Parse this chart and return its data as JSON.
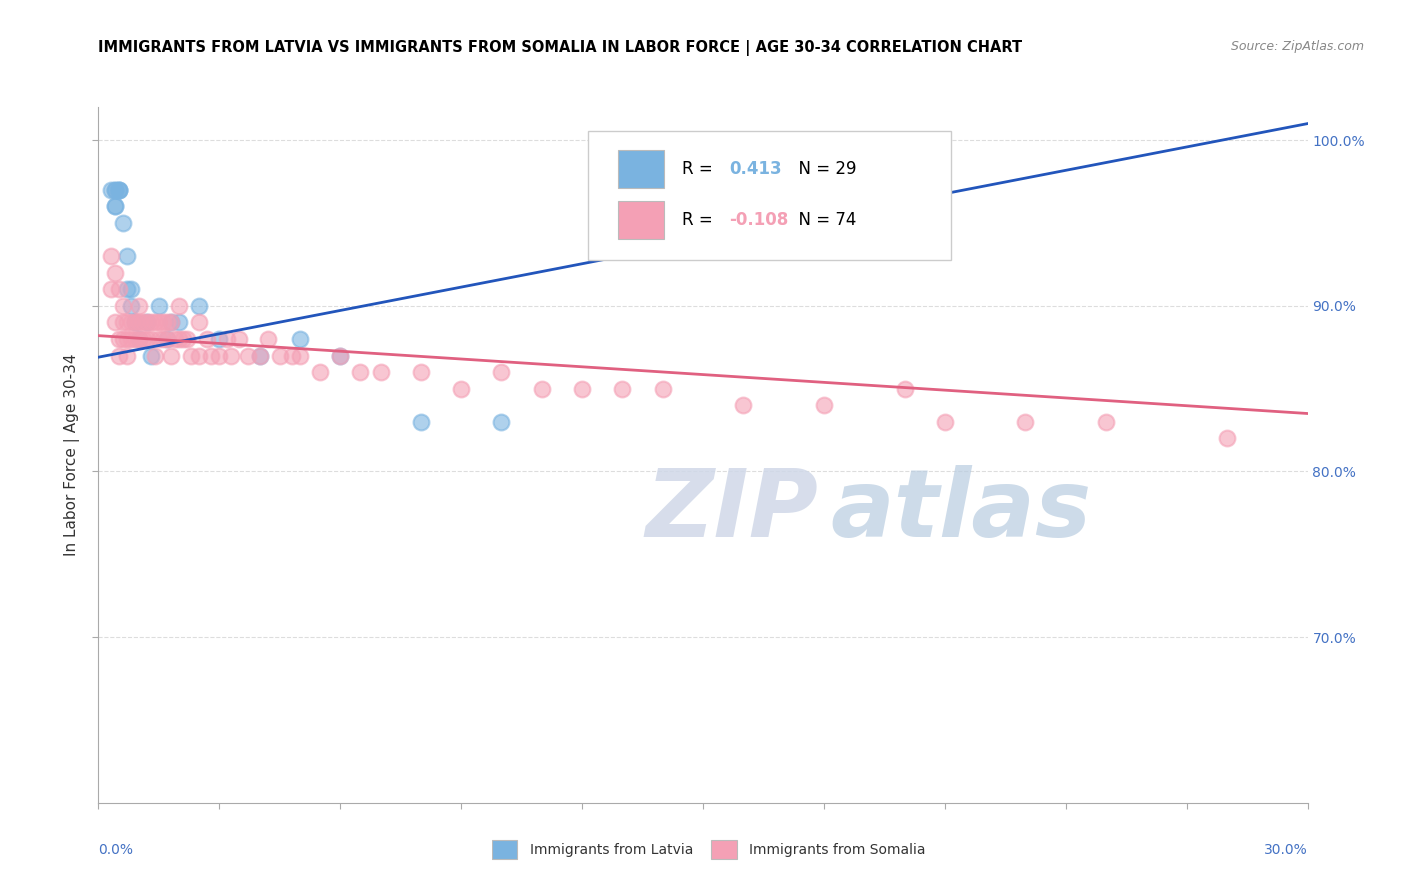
{
  "title": "IMMIGRANTS FROM LATVIA VS IMMIGRANTS FROM SOMALIA IN LABOR FORCE | AGE 30-34 CORRELATION CHART",
  "source": "Source: ZipAtlas.com",
  "ylabel": "In Labor Force | Age 30-34",
  "legend_latvia": "Immigrants from Latvia",
  "legend_somalia": "Immigrants from Somalia",
  "R_latvia": 0.413,
  "N_latvia": 29,
  "R_somalia": -0.108,
  "N_somalia": 74,
  "xmin": 0.0,
  "xmax": 0.3,
  "ymin": 0.6,
  "ymax": 1.02,
  "yticks": [
    0.7,
    0.8,
    0.9,
    1.0
  ],
  "color_latvia": "#7ab3e0",
  "color_somalia": "#f4a0b5",
  "trendline_latvia": "#2255bb",
  "trendline_somalia": "#e06080",
  "watermark_zip": "ZIP",
  "watermark_atlas": "atlas",
  "grid_color": "#dddddd",
  "background_color": "#ffffff",
  "latvia_x": [
    0.003,
    0.004,
    0.004,
    0.004,
    0.004,
    0.005,
    0.005,
    0.005,
    0.006,
    0.007,
    0.007,
    0.008,
    0.008,
    0.009,
    0.01,
    0.012,
    0.013,
    0.015,
    0.017,
    0.018,
    0.02,
    0.025,
    0.03,
    0.04,
    0.05,
    0.06,
    0.08,
    0.1,
    0.2
  ],
  "latvia_y": [
    0.97,
    0.97,
    0.97,
    0.96,
    0.96,
    0.97,
    0.97,
    0.97,
    0.95,
    0.93,
    0.91,
    0.91,
    0.9,
    0.89,
    0.88,
    0.89,
    0.87,
    0.9,
    0.88,
    0.89,
    0.89,
    0.9,
    0.88,
    0.87,
    0.88,
    0.87,
    0.83,
    0.83,
    0.97
  ],
  "somalia_x": [
    0.003,
    0.003,
    0.004,
    0.004,
    0.005,
    0.005,
    0.005,
    0.006,
    0.006,
    0.006,
    0.007,
    0.007,
    0.007,
    0.008,
    0.008,
    0.009,
    0.009,
    0.01,
    0.01,
    0.01,
    0.011,
    0.011,
    0.012,
    0.012,
    0.013,
    0.013,
    0.014,
    0.014,
    0.015,
    0.015,
    0.016,
    0.016,
    0.017,
    0.017,
    0.018,
    0.018,
    0.019,
    0.02,
    0.02,
    0.021,
    0.022,
    0.023,
    0.025,
    0.025,
    0.027,
    0.028,
    0.03,
    0.032,
    0.033,
    0.035,
    0.037,
    0.04,
    0.042,
    0.045,
    0.048,
    0.05,
    0.055,
    0.06,
    0.065,
    0.07,
    0.08,
    0.09,
    0.1,
    0.11,
    0.12,
    0.13,
    0.14,
    0.16,
    0.18,
    0.2,
    0.21,
    0.23,
    0.25,
    0.28
  ],
  "somalia_y": [
    0.93,
    0.91,
    0.92,
    0.89,
    0.91,
    0.88,
    0.87,
    0.9,
    0.89,
    0.88,
    0.89,
    0.88,
    0.87,
    0.89,
    0.88,
    0.89,
    0.88,
    0.9,
    0.89,
    0.88,
    0.89,
    0.88,
    0.89,
    0.88,
    0.89,
    0.88,
    0.89,
    0.87,
    0.89,
    0.88,
    0.89,
    0.88,
    0.89,
    0.88,
    0.89,
    0.87,
    0.88,
    0.9,
    0.88,
    0.88,
    0.88,
    0.87,
    0.89,
    0.87,
    0.88,
    0.87,
    0.87,
    0.88,
    0.87,
    0.88,
    0.87,
    0.87,
    0.88,
    0.87,
    0.87,
    0.87,
    0.86,
    0.87,
    0.86,
    0.86,
    0.86,
    0.85,
    0.86,
    0.85,
    0.85,
    0.85,
    0.85,
    0.84,
    0.84,
    0.85,
    0.83,
    0.83,
    0.83,
    0.82
  ]
}
